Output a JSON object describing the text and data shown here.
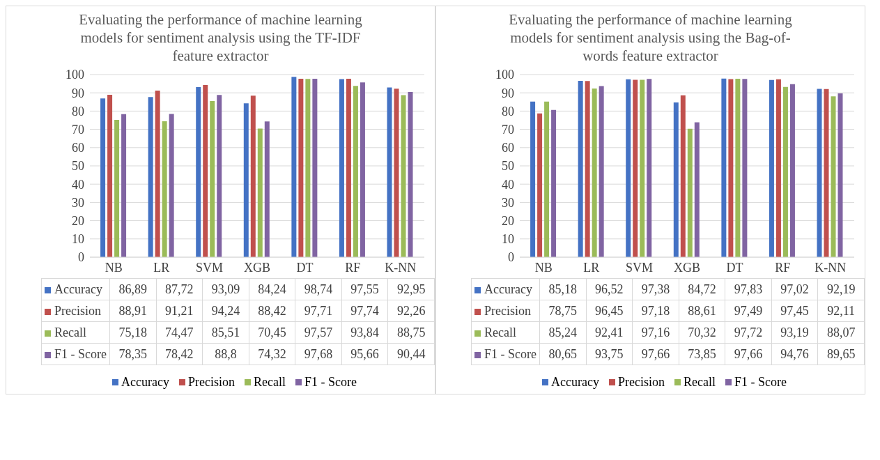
{
  "chart_data": [
    {
      "type": "bar",
      "title": "Evaluating the performance of machine learning models for sentiment analysis using the TF-IDF feature extractor",
      "categories": [
        "NB",
        "LR",
        "SVM",
        "XGB",
        "DT",
        "RF",
        "K-NN"
      ],
      "ylim": [
        0,
        100
      ],
      "yticks": [
        0,
        10,
        20,
        30,
        40,
        50,
        60,
        70,
        80,
        90,
        100
      ],
      "grid": "y",
      "legend": "bottom",
      "series": [
        {
          "name": "Accuracy",
          "color": "#4472c4",
          "values": [
            86.89,
            87.72,
            93.09,
            84.24,
            98.74,
            97.55,
            92.95
          ],
          "value_labels": [
            "86,89",
            "87,72",
            "93,09",
            "84,24",
            "98,74",
            "97,55",
            "92,95"
          ]
        },
        {
          "name": "Precision",
          "color": "#c0504d",
          "values": [
            88.91,
            91.21,
            94.24,
            88.42,
            97.71,
            97.74,
            92.26
          ],
          "value_labels": [
            "88,91",
            "91,21",
            "94,24",
            "88,42",
            "97,71",
            "97,74",
            "92,26"
          ]
        },
        {
          "name": "Recall",
          "color": "#9bbb59",
          "values": [
            75.18,
            74.47,
            85.51,
            70.45,
            97.57,
            93.84,
            88.75
          ],
          "value_labels": [
            "75,18",
            "74,47",
            "85,51",
            "70,45",
            "97,57",
            "93,84",
            "88,75"
          ]
        },
        {
          "name": "F1 - Score",
          "color": "#8064a2",
          "values": [
            78.35,
            78.42,
            88.8,
            74.32,
            97.68,
            95.66,
            90.44
          ],
          "value_labels": [
            "78,35",
            "78,42",
            "88,8",
            "74,32",
            "97,68",
            "95,66",
            "90,44"
          ]
        }
      ]
    },
    {
      "type": "bar",
      "title": "Evaluating the performance of machine learning models for sentiment analysis using the Bag-of-words feature extractor",
      "categories": [
        "NB",
        "LR",
        "SVM",
        "XGB",
        "DT",
        "RF",
        "K-NN"
      ],
      "ylim": [
        0,
        100
      ],
      "yticks": [
        0,
        10,
        20,
        30,
        40,
        50,
        60,
        70,
        80,
        90,
        100
      ],
      "grid": "y",
      "legend": "bottom",
      "series": [
        {
          "name": "Accuracy",
          "color": "#4472c4",
          "values": [
            85.18,
            96.52,
            97.38,
            84.72,
            97.83,
            97.02,
            92.19
          ],
          "value_labels": [
            "85,18",
            "96,52",
            "97,38",
            "84,72",
            "97,83",
            "97,02",
            "92,19"
          ]
        },
        {
          "name": "Precision",
          "color": "#c0504d",
          "values": [
            78.75,
            96.45,
            97.18,
            88.61,
            97.49,
            97.45,
            92.11
          ],
          "value_labels": [
            "78,75",
            "96,45",
            "97,18",
            "88,61",
            "97,49",
            "97,45",
            "92,11"
          ]
        },
        {
          "name": "Recall",
          "color": "#9bbb59",
          "values": [
            85.24,
            92.41,
            97.16,
            70.32,
            97.72,
            93.19,
            88.07
          ],
          "value_labels": [
            "85,24",
            "92,41",
            "97,16",
            "70,32",
            "97,72",
            "93,19",
            "88,07"
          ]
        },
        {
          "name": "F1 - Score",
          "color": "#8064a2",
          "values": [
            80.65,
            93.75,
            97.66,
            73.85,
            97.66,
            94.76,
            89.65
          ],
          "value_labels": [
            "80,65",
            "93,75",
            "97,66",
            "73,85",
            "97,66",
            "94,76",
            "89,65"
          ]
        }
      ]
    }
  ]
}
